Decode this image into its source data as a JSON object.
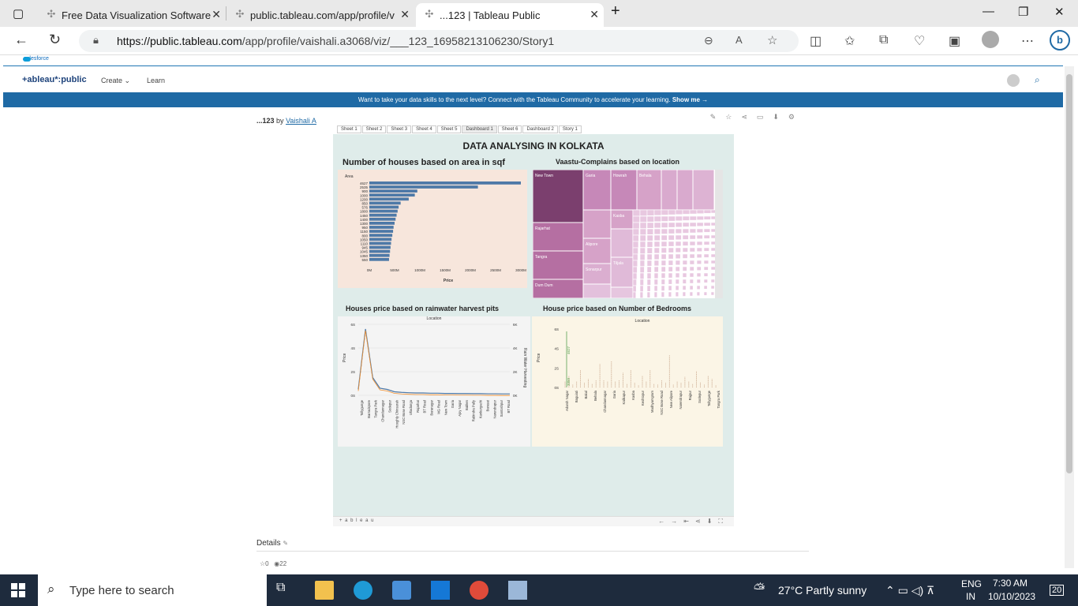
{
  "browser": {
    "tabs": [
      {
        "title": "Free Data Visualization Software",
        "active": false
      },
      {
        "title": "public.tableau.com/app/profile/v",
        "active": false
      },
      {
        "title": "...123 | Tableau Public",
        "active": true
      }
    ],
    "url_host": "https://public.tableau.com",
    "url_path": "/app/profile/vaishali.a3068/viz/___123_16958213106230/Story1"
  },
  "site": {
    "salesforce": "salesforce",
    "logo": "+ableau*:public",
    "nav": [
      "Create",
      "Learn"
    ],
    "banner": "Want to take your data skills to the next level? Connect with the Tableau Community to accelerate your learning.",
    "banner_link": "Show me →"
  },
  "viz": {
    "title": "...123",
    "by": "by",
    "author": "Vaishali A",
    "sheet_tabs": [
      "Sheet 1",
      "Sheet 2",
      "Sheet 3",
      "Sheet 4",
      "Sheet 5",
      "Dashboard 1",
      "Sheet 6",
      "Dashboard 2",
      "Story 1"
    ],
    "active_tab": "Dashboard 1",
    "dashboard_title": "DATA  ANALYSING IN KOLKATA",
    "tableau_footer": "+ a b l e a u",
    "details": "Details",
    "favorites": "0",
    "views": "22"
  },
  "chart_data": [
    {
      "type": "bar",
      "title": "Number of houses based on area in sqf",
      "ylabel": "Area",
      "xlabel": "Price",
      "categories": [
        "4627",
        "2535",
        "900",
        "1000",
        "1200",
        "850",
        "576",
        "1800",
        "1450",
        "1400",
        "1300",
        "950",
        "1150",
        "800",
        "1050",
        "1110",
        "945",
        "1045",
        "1350",
        "550"
      ],
      "values": [
        3000,
        2150,
        950,
        900,
        780,
        620,
        580,
        560,
        540,
        520,
        500,
        480,
        470,
        455,
        440,
        430,
        420,
        410,
        400,
        390
      ],
      "xticks": [
        "0M",
        "500M",
        "1000M",
        "1500M",
        "2000M",
        "2500M",
        "3000M"
      ],
      "xlim": [
        0,
        3000
      ]
    },
    {
      "type": "heatmap",
      "title": "Vaastu-Complains based on location",
      "labels": [
        "New Town",
        "Rajarhat",
        "Tangra",
        "Dum Dum",
        "Garia",
        "Howrah",
        "Behala",
        "Kasba",
        "Alipore",
        "Sonarpur",
        "Tiljala"
      ]
    },
    {
      "type": "line",
      "title": "Houses price based on rainwater harvest pits",
      "xlabel": "Location",
      "ylabel": "Price",
      "y2label": "Rain Water Harvesting",
      "yticks": [
        "6S",
        "4S",
        "2S",
        "0S"
      ],
      "y2ticks": [
        "6K",
        "4K",
        "2K",
        "0K"
      ],
      "categories": [
        "Tollygunge",
        "Barrackpore",
        "Tangra Park",
        "Chandannagar",
        "Sodepur",
        "Hooghly Chinsurah",
        "NSC Bose Road",
        "Ultadanga",
        "Rajarhat",
        "BT Road",
        "Baranagar",
        "MG Road",
        "New Town",
        "Garia",
        "Ajoy Nagar",
        "Bablen",
        "Rabindra Pally",
        "Kankurgachi",
        "Barasat",
        "Narendrapur",
        "Santoshpur",
        "BT Road"
      ],
      "values": [
        0.5,
        5.6,
        1.5,
        0.6,
        0.5,
        0.3,
        0.25,
        0.22,
        0.2,
        0.2,
        0.18,
        0.18,
        0.16,
        0.16,
        0.15,
        0.15,
        0.14,
        0.14,
        0.13,
        0.13,
        0.12,
        0.12
      ]
    },
    {
      "type": "scatter",
      "title": "House price based on Number of Bedrooms",
      "xlabel": "Location",
      "ylabel": "Price",
      "yticks": [
        "6S",
        "4S",
        "2S",
        "0S"
      ],
      "annotations": [
        "4627",
        "3359"
      ],
      "categories": [
        "Adarsh Nagar",
        "Baguiati",
        "Bakul",
        "Behala",
        "Chandannagar",
        "Garia",
        "Kalikapur",
        "Kasba",
        "Keshtopur",
        "Madhyamgram",
        "NSC Bose Road",
        "New Alipore",
        "Narendrapur",
        "Rajpur",
        "Sodepur",
        "Tollygunge",
        "Tangra Park"
      ]
    }
  ],
  "taskbar": {
    "search_placeholder": "Type here to search",
    "weather": "27°C  Partly sunny",
    "lang1": "ENG",
    "lang2": "IN",
    "time": "7:30 AM",
    "date": "10/10/2023",
    "notif": "20"
  }
}
